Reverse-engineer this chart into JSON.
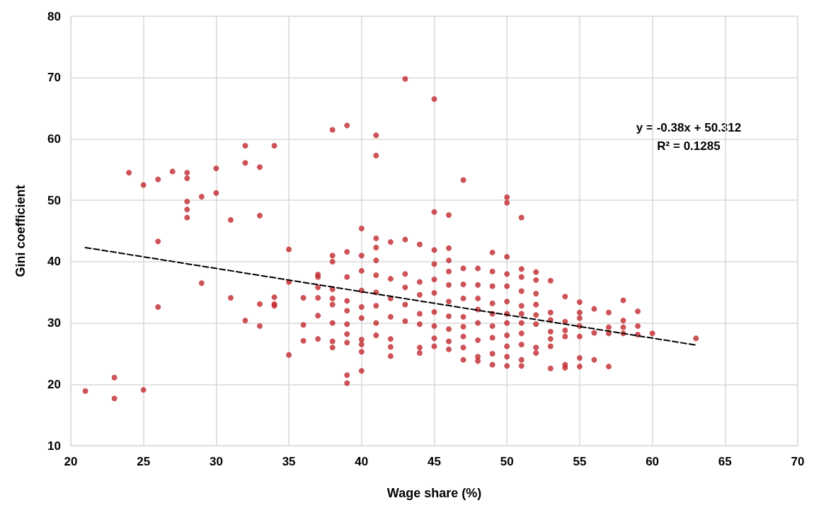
{
  "chart_data": {
    "type": "scatter",
    "xlabel": "Wage share (%)",
    "ylabel": "Gini coefficient",
    "xlim": [
      20,
      70
    ],
    "xticks": [
      20,
      25,
      30,
      35,
      40,
      45,
      50,
      55,
      60,
      65,
      70
    ],
    "ylim": [
      10,
      80
    ],
    "yticks": [
      10,
      20,
      30,
      40,
      50,
      60,
      70,
      80
    ],
    "grid": true,
    "marker": "circle",
    "annotations": [
      "y = -0.38x + 50.312",
      "R² = 0.1285"
    ],
    "series": [
      {
        "color": "#c0282d",
        "x": [
          21,
          23,
          23,
          25,
          24,
          25,
          26,
          27,
          28,
          28,
          28,
          28,
          28,
          29,
          30,
          30,
          31,
          32,
          32,
          33,
          34,
          33,
          26,
          26,
          29,
          31,
          32,
          33,
          33,
          34,
          34,
          34,
          35,
          35,
          35,
          36,
          36,
          36,
          37,
          37,
          37,
          37,
          37,
          37,
          38,
          38,
          38,
          38,
          38,
          38,
          38,
          38,
          38,
          39,
          39,
          39,
          39,
          39,
          39,
          39,
          39,
          39,
          39,
          40,
          40,
          40,
          40,
          40,
          40,
          40,
          40,
          40,
          40,
          41,
          41,
          41,
          41,
          41,
          41,
          41,
          41,
          41,
          41,
          42,
          42,
          42,
          42,
          42,
          42,
          42,
          43,
          43,
          43,
          43,
          43,
          43,
          44,
          44,
          44,
          44,
          44,
          44,
          44,
          45,
          45,
          45,
          45,
          45,
          45,
          45,
          45,
          45,
          45,
          46,
          46,
          46,
          46,
          46,
          46,
          46,
          46,
          46,
          46,
          47,
          47,
          47,
          47,
          47,
          47,
          47,
          47,
          47,
          48,
          48,
          48,
          48,
          48,
          48,
          48,
          48,
          49,
          49,
          49,
          49,
          49,
          49,
          49,
          49,
          49,
          50,
          50,
          50,
          50,
          50,
          50,
          50,
          50,
          50,
          50,
          50,
          50,
          51,
          51,
          51,
          51,
          51,
          51,
          51,
          51,
          51,
          51,
          51,
          52,
          52,
          52,
          52,
          52,
          52,
          52,
          52,
          53,
          53,
          53,
          53,
          53,
          53,
          53,
          54,
          54,
          54,
          54,
          54,
          54,
          55,
          55,
          55,
          55,
          55,
          55,
          55,
          56,
          56,
          56,
          57,
          57,
          57,
          57,
          58,
          58,
          58,
          58,
          59,
          59,
          59,
          60,
          63
        ],
        "values": [
          18.9,
          21.1,
          17.7,
          19.1,
          54.5,
          52.5,
          53.4,
          54.7,
          54.5,
          53.6,
          49.8,
          48.5,
          47.2,
          50.6,
          55.2,
          51.2,
          46.8,
          58.9,
          56.1,
          55.4,
          58.9,
          47.5,
          43.3,
          32.6,
          36.5,
          34.1,
          30.4,
          33.1,
          29.5,
          34.2,
          33.1,
          32.8,
          42,
          36.7,
          24.8,
          34.1,
          29.7,
          27.1,
          37.9,
          37.5,
          35.8,
          34.1,
          31.2,
          27.4,
          61.5,
          41,
          40,
          35.5,
          34,
          33,
          30,
          27,
          26,
          62.2,
          41.6,
          37.5,
          33.6,
          32,
          29.8,
          28.2,
          26.8,
          21.5,
          20.2,
          45.4,
          41,
          38.5,
          35.3,
          32.6,
          30.8,
          27.3,
          26.5,
          25.3,
          22.2,
          60.6,
          57.3,
          43.8,
          42.3,
          40.2,
          37.8,
          35,
          32.8,
          30,
          28,
          43.2,
          37.2,
          34,
          31,
          27.4,
          26.1,
          24.6,
          69.8,
          43.6,
          38,
          35.8,
          33,
          30.3,
          42.8,
          36.7,
          34.6,
          31.5,
          29.8,
          26,
          25.1,
          66.5,
          48.1,
          41.9,
          39.6,
          37.1,
          34.9,
          31.8,
          29.5,
          27.5,
          26.2,
          47.6,
          42.2,
          40.2,
          38.4,
          36.2,
          33.5,
          31.1,
          29,
          27,
          25.7,
          53.3,
          38.9,
          36.3,
          34,
          31,
          29.4,
          27.8,
          26,
          24,
          38.9,
          36.2,
          34,
          32.2,
          30,
          27.2,
          24.5,
          23.8,
          41.5,
          38.4,
          36,
          33.2,
          31.5,
          29.5,
          27.6,
          25,
          23.2,
          50.5,
          49.6,
          40.8,
          38,
          36,
          33.5,
          31.5,
          30,
          28,
          26.2,
          24.5,
          23,
          47.2,
          38.8,
          37.5,
          35.2,
          32.8,
          31.5,
          30,
          28.3,
          26.5,
          24,
          23,
          38.3,
          37,
          34.8,
          33,
          31.3,
          29.8,
          26,
          25.1,
          36.9,
          31.7,
          30.5,
          28.6,
          27.4,
          26.2,
          22.6,
          34.3,
          30.2,
          28.8,
          27.8,
          23.2,
          22.7,
          33.4,
          31.7,
          30.8,
          29.5,
          27.8,
          24.3,
          22.9,
          32.3,
          28.4,
          24,
          31.7,
          29.3,
          28.3,
          22.9,
          33.7,
          30.4,
          29.3,
          28.3,
          31.9,
          29.5,
          28.1,
          28.3,
          27.5
        ]
      },
      {
        "type": "line",
        "color": "#000000",
        "line_style": "dashed",
        "marker": "none",
        "x": [
          21,
          63
        ],
        "values": [
          42.3,
          26.4
        ]
      }
    ]
  }
}
